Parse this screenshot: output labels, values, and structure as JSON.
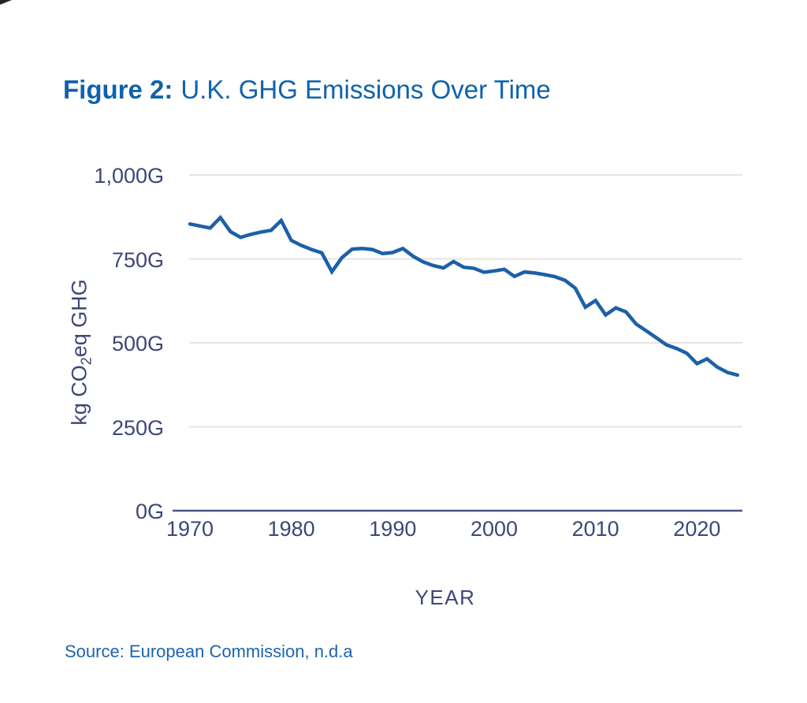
{
  "figure": {
    "label": "Figure 2:",
    "title": "U.K. GHG Emissions Over Time"
  },
  "source": {
    "text": "Source: European Commission, n.d.a"
  },
  "colors": {
    "title": "#0f62ad",
    "line": "#1c60a8",
    "tick_text": "#3e4677",
    "axis_line": "#4a5280",
    "gridline": "#e8e4d9",
    "source_text": "#1e64ae"
  },
  "chart_data": {
    "type": "line",
    "title": "U.K. GHG Emissions Over Time",
    "series_name": "U.K. GHG emissions",
    "xlabel": "YEAR",
    "ylabel": "kg CO2eq GHG",
    "ylabel_parts": {
      "pre": "kg CO",
      "sub": "2",
      "post": "eq GHG"
    },
    "x": [
      1970,
      1971,
      1972,
      1973,
      1974,
      1975,
      1976,
      1977,
      1978,
      1979,
      1980,
      1981,
      1982,
      1983,
      1984,
      1985,
      1986,
      1987,
      1988,
      1989,
      1990,
      1991,
      1992,
      1993,
      1994,
      1995,
      1996,
      1997,
      1998,
      1999,
      2000,
      2001,
      2002,
      2003,
      2004,
      2005,
      2006,
      2007,
      2008,
      2009,
      2010,
      2011,
      2012,
      2013,
      2014,
      2015,
      2016,
      2017,
      2018,
      2019,
      2020,
      2021,
      2022,
      2023,
      2024
    ],
    "values": [
      854,
      848,
      842,
      873,
      831,
      814,
      823,
      830,
      835,
      864,
      805,
      790,
      778,
      768,
      712,
      754,
      779,
      781,
      778,
      766,
      769,
      781,
      758,
      741,
      730,
      723,
      742,
      725,
      722,
      710,
      714,
      719,
      698,
      711,
      708,
      703,
      697,
      686,
      663,
      606,
      626,
      583,
      604,
      592,
      556,
      536,
      515,
      494,
      483,
      469,
      438,
      452,
      428,
      412,
      404
    ],
    "ylim": [
      0,
      1000
    ],
    "yticks": [
      {
        "value": 0,
        "label": "0G"
      },
      {
        "value": 250,
        "label": "250G"
      },
      {
        "value": 500,
        "label": "500G"
      },
      {
        "value": 750,
        "label": "750G"
      },
      {
        "value": 1000,
        "label": "1,000G"
      }
    ],
    "xticks": [
      1970,
      1980,
      1990,
      2000,
      2010,
      2020
    ],
    "grid": "horizontal",
    "legend": "none"
  }
}
